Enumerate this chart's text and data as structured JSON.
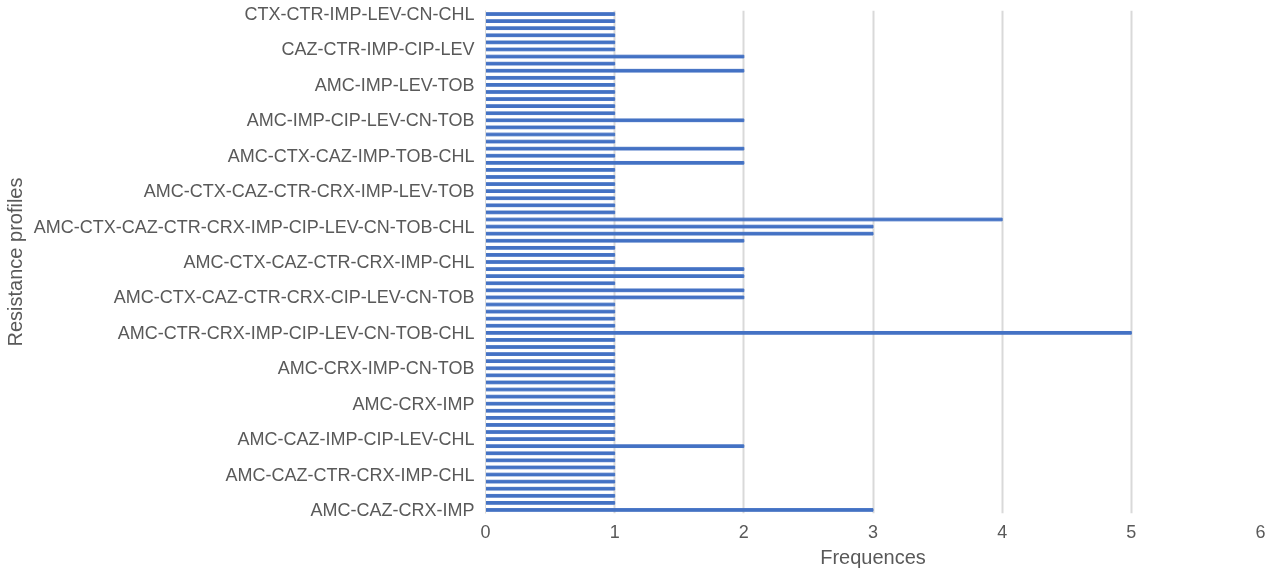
{
  "chart_data": {
    "type": "bar",
    "orientation": "horizontal",
    "xlabel": "Frequences",
    "ylabel": "Resistance profiles",
    "categories": [
      "CTX-CTR-IMP-LEV-CN-CHL",
      null,
      null,
      null,
      null,
      "CAZ-CTR-IMP-CIP-LEV",
      null,
      null,
      null,
      null,
      "AMC-IMP-LEV-TOB",
      null,
      null,
      null,
      null,
      "AMC-IMP-CIP-LEV-CN-TOB",
      null,
      null,
      null,
      null,
      "AMC-CTX-CAZ-IMP-TOB-CHL",
      null,
      null,
      null,
      null,
      "AMC-CTX-CAZ-CTR-CRX-IMP-LEV-TOB",
      null,
      null,
      null,
      null,
      "AMC-CTX-CAZ-CTR-CRX-IMP-CIP-LEV-CN-TOB-CHL",
      null,
      null,
      null,
      null,
      "AMC-CTX-CAZ-CTR-CRX-IMP-CHL",
      null,
      null,
      null,
      null,
      "AMC-CTX-CAZ-CTR-CRX-CIP-LEV-CN-TOB",
      null,
      null,
      null,
      null,
      "AMC-CTR-CRX-IMP-CIP-LEV-CN-TOB-CHL",
      null,
      null,
      null,
      null,
      "AMC-CRX-IMP-CN-TOB",
      null,
      null,
      null,
      null,
      "AMC-CRX-IMP",
      null,
      null,
      null,
      null,
      "AMC-CAZ-IMP-CIP-LEV-CHL",
      null,
      null,
      null,
      null,
      "AMC-CAZ-CTR-CRX-IMP-CHL",
      null,
      null,
      null,
      null,
      "AMC-CAZ-CRX-IMP"
    ],
    "values": [
      1,
      1,
      1,
      1,
      1,
      1,
      2,
      1,
      2,
      1,
      1,
      1,
      1,
      1,
      1,
      2,
      1,
      1,
      1,
      2,
      1,
      2,
      1,
      1,
      1,
      1,
      1,
      1,
      1,
      4,
      3,
      3,
      2,
      1,
      1,
      1,
      2,
      2,
      1,
      2,
      2,
      1,
      1,
      1,
      1,
      5,
      1,
      1,
      1,
      1,
      1,
      1,
      1,
      1,
      1,
      1,
      1,
      1,
      1,
      1,
      1,
      2,
      1,
      1,
      1,
      1,
      1,
      1,
      1,
      1,
      3
    ],
    "color": "#4472c4",
    "xlim": [
      0,
      6
    ],
    "xticks": [
      0,
      1,
      2,
      3,
      4,
      5,
      6
    ],
    "grid": "x"
  }
}
